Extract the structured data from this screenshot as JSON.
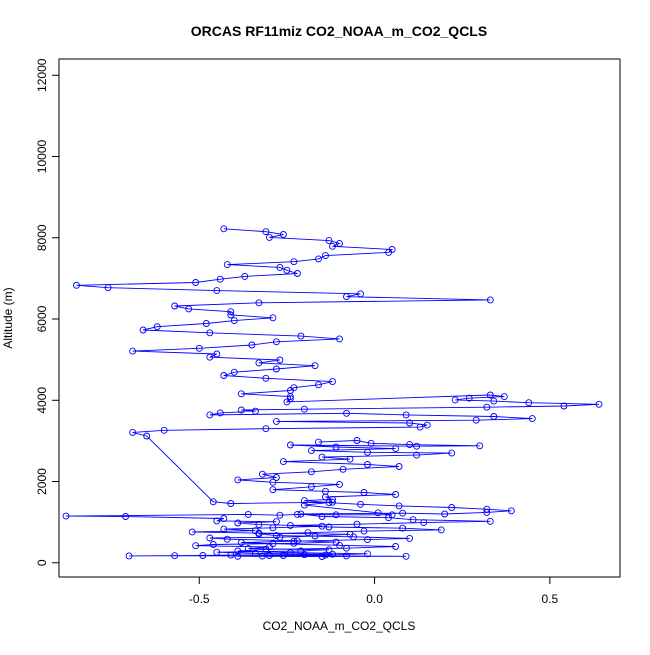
{
  "chart_data": {
    "type": "line",
    "title": "ORCAS RF11miz CO2_NOAA_m_CO2_QCLS",
    "xlabel": "CO2_NOAA_m_CO2_QCLS",
    "ylabel": "Altitude (m)",
    "xlim": [
      -0.9,
      0.7
    ],
    "ylim": [
      -350,
      12400
    ],
    "xticks": [
      -0.5,
      0.0,
      0.5
    ],
    "xtick_labels": [
      "-0.5",
      "0.0",
      "0.5"
    ],
    "yticks": [
      0,
      2000,
      4000,
      6000,
      8000,
      10000,
      12000
    ],
    "ytick_labels": [
      "0",
      "2000",
      "4000",
      "6000",
      "8000",
      "10000",
      "12000"
    ],
    "grid": false,
    "legend": "none",
    "colors": {
      "series": "#0000ff",
      "axes": "#000000",
      "background": "#ffffff"
    },
    "series": [
      {
        "marker": "open-circle",
        "points": [
          [
            -0.43,
            8220
          ],
          [
            -0.31,
            8150
          ],
          [
            -0.26,
            8080
          ],
          [
            -0.3,
            8010
          ],
          [
            -0.13,
            7930
          ],
          [
            -0.1,
            7860
          ],
          [
            -0.12,
            7790
          ],
          [
            0.05,
            7710
          ],
          [
            0.04,
            7640
          ],
          [
            -0.14,
            7560
          ],
          [
            -0.16,
            7480
          ],
          [
            -0.23,
            7410
          ],
          [
            -0.42,
            7340
          ],
          [
            -0.27,
            7270
          ],
          [
            -0.25,
            7200
          ],
          [
            -0.22,
            7120
          ],
          [
            -0.37,
            7050
          ],
          [
            -0.44,
            6980
          ],
          [
            -0.51,
            6900
          ],
          [
            -0.85,
            6830
          ],
          [
            -0.76,
            6770
          ],
          [
            -0.45,
            6700
          ],
          [
            -0.04,
            6620
          ],
          [
            -0.08,
            6550
          ],
          [
            0.33,
            6470
          ],
          [
            -0.33,
            6400
          ],
          [
            -0.57,
            6320
          ],
          [
            -0.53,
            6250
          ],
          [
            -0.41,
            6180
          ],
          [
            -0.41,
            6100
          ],
          [
            -0.29,
            6030
          ],
          [
            -0.4,
            5960
          ],
          [
            -0.48,
            5890
          ],
          [
            -0.62,
            5810
          ],
          [
            -0.66,
            5730
          ],
          [
            -0.47,
            5660
          ],
          [
            -0.21,
            5580
          ],
          [
            -0.1,
            5510
          ],
          [
            -0.28,
            5440
          ],
          [
            -0.35,
            5360
          ],
          [
            -0.5,
            5280
          ],
          [
            -0.69,
            5210
          ],
          [
            -0.45,
            5140
          ],
          [
            -0.47,
            5060
          ],
          [
            -0.27,
            4990
          ],
          [
            -0.33,
            4920
          ],
          [
            -0.17,
            4850
          ],
          [
            -0.28,
            4770
          ],
          [
            -0.4,
            4690
          ],
          [
            -0.43,
            4610
          ],
          [
            -0.31,
            4540
          ],
          [
            -0.12,
            4460
          ],
          [
            -0.16,
            4380
          ],
          [
            -0.23,
            4310
          ],
          [
            -0.24,
            4240
          ],
          [
            -0.38,
            4160
          ],
          [
            -0.24,
            4090
          ],
          [
            -0.24,
            4040
          ],
          [
            -0.25,
            3960
          ],
          [
            0.33,
            4130
          ],
          [
            0.37,
            4090
          ],
          [
            0.27,
            4050
          ],
          [
            0.23,
            4010
          ],
          [
            0.34,
            3980
          ],
          [
            0.44,
            3940
          ],
          [
            0.64,
            3900
          ],
          [
            0.54,
            3860
          ],
          [
            0.32,
            3830
          ],
          [
            -0.2,
            3780
          ],
          [
            -0.38,
            3760
          ],
          [
            -0.34,
            3730
          ],
          [
            -0.44,
            3690
          ],
          [
            -0.47,
            3640
          ],
          [
            -0.08,
            3680
          ],
          [
            0.09,
            3640
          ],
          [
            0.34,
            3600
          ],
          [
            0.45,
            3550
          ],
          [
            0.29,
            3510
          ],
          [
            -0.28,
            3480
          ],
          [
            0.1,
            3440
          ],
          [
            0.15,
            3390
          ],
          [
            0.13,
            3340
          ],
          [
            -0.31,
            3300
          ],
          [
            -0.6,
            3260
          ],
          [
            -0.69,
            3210
          ],
          [
            -0.65,
            3120
          ],
          [
            -0.46,
            1500
          ],
          [
            -0.41,
            1460
          ],
          [
            -0.12,
            1490
          ],
          [
            -0.2,
            1420
          ],
          [
            0.01,
            1230
          ],
          [
            0.05,
            1180
          ],
          [
            -0.11,
            1180
          ],
          [
            -0.22,
            1190
          ],
          [
            -0.27,
            1170
          ],
          [
            -0.36,
            1190
          ],
          [
            -0.88,
            1150
          ],
          [
            -0.71,
            1140
          ],
          [
            -0.43,
            1090
          ],
          [
            -0.45,
            1030
          ],
          [
            -0.28,
            1010
          ],
          [
            -0.39,
            980
          ],
          [
            -0.33,
            940
          ],
          [
            -0.15,
            900
          ],
          [
            -0.29,
            860
          ],
          [
            -0.43,
            830
          ],
          [
            -0.34,
            790
          ],
          [
            -0.52,
            760
          ],
          [
            -0.33,
            730
          ],
          [
            -0.07,
            700
          ],
          [
            -0.17,
            660
          ],
          [
            -0.27,
            630
          ],
          [
            -0.47,
            610
          ],
          [
            -0.42,
            580
          ],
          [
            -0.22,
            540
          ],
          [
            -0.11,
            510
          ],
          [
            -0.23,
            480
          ],
          [
            -0.46,
            450
          ],
          [
            -0.51,
            420
          ],
          [
            -0.3,
            390
          ],
          [
            -0.36,
            350
          ],
          [
            -0.13,
            320
          ],
          [
            -0.21,
            290
          ],
          [
            -0.45,
            260
          ],
          [
            -0.34,
            230
          ],
          [
            -0.12,
            210
          ],
          [
            -0.2,
            200
          ],
          [
            -0.41,
            190
          ],
          [
            -0.49,
            180
          ],
          [
            -0.7,
            170
          ],
          [
            -0.57,
            175
          ],
          [
            -0.32,
            165
          ],
          [
            -0.08,
            170
          ],
          [
            0.09,
            160
          ],
          [
            -0.15,
            155
          ],
          [
            -0.39,
            160
          ],
          [
            -0.26,
            180
          ]
        ]
      },
      {
        "marker": "open-circle",
        "points": [
          [
            -0.16,
            2970
          ],
          [
            -0.05,
            3010
          ],
          [
            -0.01,
            2940
          ],
          [
            0.1,
            2910
          ],
          [
            0.3,
            2880
          ],
          [
            0.12,
            2870
          ],
          [
            -0.24,
            2900
          ],
          [
            -0.11,
            2850
          ],
          [
            0.06,
            2810
          ],
          [
            -0.18,
            2760
          ],
          [
            -0.02,
            2720
          ],
          [
            0.22,
            2700
          ],
          [
            0.12,
            2650
          ],
          [
            -0.15,
            2600
          ],
          [
            -0.07,
            2550
          ],
          [
            -0.26,
            2490
          ],
          [
            -0.02,
            2420
          ],
          [
            0.07,
            2370
          ],
          [
            -0.09,
            2300
          ],
          [
            -0.18,
            2240
          ],
          [
            -0.32,
            2180
          ],
          [
            -0.28,
            2100
          ],
          [
            -0.39,
            2040
          ],
          [
            -0.29,
            1980
          ],
          [
            -0.1,
            1930
          ],
          [
            -0.18,
            1870
          ],
          [
            -0.29,
            1800
          ],
          [
            -0.14,
            1760
          ],
          [
            -0.03,
            1730
          ],
          [
            0.06,
            1680
          ],
          [
            -0.14,
            1620
          ],
          [
            -0.12,
            1560
          ],
          [
            -0.2,
            1530
          ],
          [
            -0.13,
            1480
          ],
          [
            -0.04,
            1440
          ],
          [
            0.07,
            1400
          ],
          [
            0.22,
            1360
          ],
          [
            0.32,
            1320
          ],
          [
            0.39,
            1280
          ],
          [
            0.32,
            1240
          ],
          [
            0.2,
            1200
          ],
          [
            0.08,
            1220
          ],
          [
            -0.21,
            1200
          ],
          [
            -0.15,
            1140
          ],
          [
            0.04,
            1110
          ],
          [
            0.11,
            1060
          ],
          [
            0.33,
            1020
          ],
          [
            0.14,
            990
          ],
          [
            -0.05,
            950
          ],
          [
            -0.24,
            920
          ],
          [
            -0.13,
            880
          ],
          [
            0.08,
            850
          ],
          [
            0.19,
            810
          ],
          [
            -0.03,
            780
          ],
          [
            -0.19,
            740
          ],
          [
            -0.33,
            710
          ],
          [
            -0.28,
            670
          ],
          [
            -0.06,
            640
          ],
          [
            0.1,
            600
          ],
          [
            -0.02,
            570
          ],
          [
            -0.23,
            530
          ],
          [
            -0.38,
            500
          ],
          [
            -0.29,
            470
          ],
          [
            -0.1,
            430
          ],
          [
            0.06,
            400
          ],
          [
            -0.08,
            360
          ],
          [
            -0.31,
            330
          ],
          [
            -0.39,
            290
          ],
          [
            -0.24,
            250
          ],
          [
            -0.02,
            220
          ],
          [
            -0.14,
            190
          ],
          [
            -0.3,
            180
          ]
        ]
      }
    ]
  }
}
